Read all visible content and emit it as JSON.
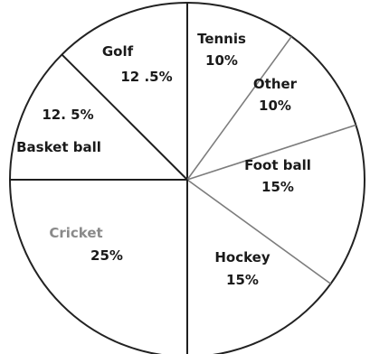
{
  "chart_data": {
    "type": "pie",
    "title": "",
    "slices": [
      {
        "label": "Tennis",
        "value_text": "10%",
        "value": 10
      },
      {
        "label": "Other",
        "value_text": "10%",
        "value": 10
      },
      {
        "label": "Foot ball",
        "value_text": "15%",
        "value": 15
      },
      {
        "label": "Hockey",
        "value_text": "15%",
        "value": 15
      },
      {
        "label": "Cricket",
        "value_text": "25%",
        "value": 25
      },
      {
        "label": "Basket ball",
        "value_text": "12. 5%",
        "value": 12.5
      },
      {
        "label": "Golf",
        "value_text": "12 .5%",
        "value": 12.5
      }
    ],
    "colors": {
      "stroke_outer": "#222222",
      "stroke_dark": "#1f1f1f",
      "stroke_light": "#7d7d7d",
      "fill": "#ffffff",
      "label_muted": "#8a8a8a",
      "label_default": "#1a1a1a"
    }
  }
}
